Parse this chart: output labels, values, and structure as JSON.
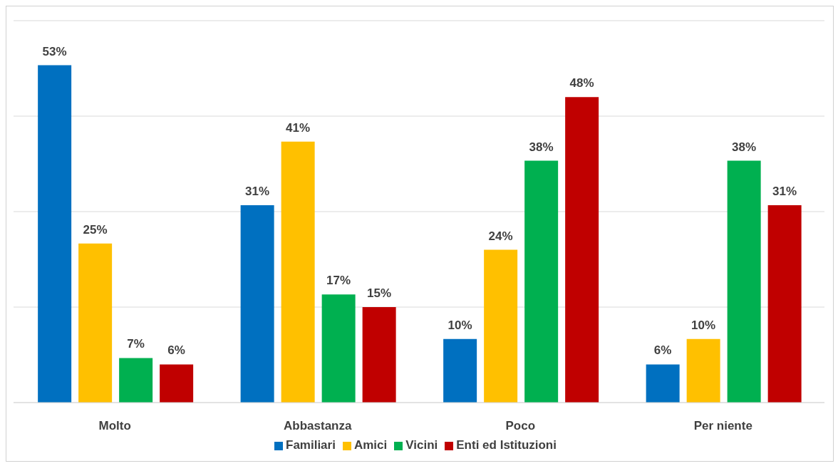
{
  "chart_data": {
    "type": "bar",
    "categories": [
      "Molto",
      "Abbastanza",
      "Poco",
      "Per niente"
    ],
    "series": [
      {
        "name": "Familiari",
        "color": "#0070c0",
        "values": [
          53,
          31,
          10,
          6
        ],
        "value_labels": [
          "53%",
          "31%",
          "10%",
          "6%"
        ]
      },
      {
        "name": "Amici",
        "color": "#ffc000",
        "values": [
          25,
          41,
          24,
          10
        ],
        "value_labels": [
          "25%",
          "41%",
          "24%",
          "10%"
        ]
      },
      {
        "name": "Vicini",
        "color": "#00b050",
        "values": [
          7,
          17,
          38,
          38
        ],
        "value_labels": [
          "7%",
          "17%",
          "38%",
          "38%"
        ]
      },
      {
        "name": "Enti ed Istituzioni",
        "color": "#c00000",
        "values": [
          6,
          15,
          48,
          31
        ],
        "value_labels": [
          "6%",
          "15%",
          "48%",
          "31%"
        ]
      }
    ],
    "tick_labels": "x",
    "grid": "y",
    "legend": "bottom"
  }
}
